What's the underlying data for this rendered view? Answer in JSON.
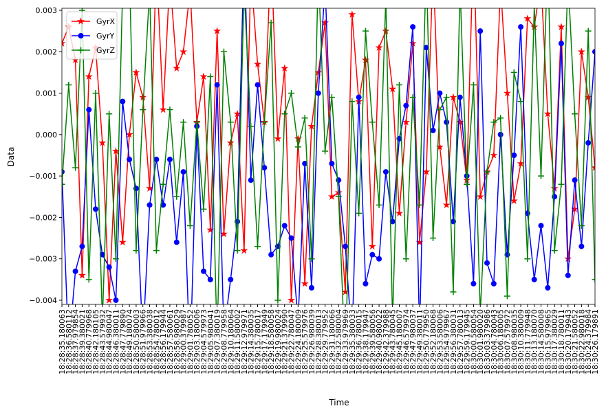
{
  "chart_data": {
    "type": "line",
    "xlabel": "Time",
    "ylabel": "Data",
    "categories": [
      "18:28:35.180063",
      "18:28:36.580112",
      "18:28:37.979854",
      "18:28:39.380021",
      "18:28:40.779968",
      "18:28:42.180105",
      "18:28:43.579932",
      "18:28:44.980047",
      "18:28:46.380011",
      "18:28:47.779890",
      "18:28:49.180074",
      "18:28:50.580003",
      "18:28:51.979966",
      "18:28:53.380038",
      "18:28:54.780012",
      "18:28:56.179944",
      "18:28:57.580061",
      "18:28:58.980029",
      "18:29:00.379987",
      "18:29:01.780052",
      "18:29:03.180006",
      "18:29:04.579973",
      "18:29:05.980041",
      "18:29:07.380019",
      "18:29:08.779958",
      "18:29:10.180064",
      "18:29:11.580002",
      "18:29:12.979971",
      "18:29:14.380035",
      "18:29:15.780017",
      "18:29:17.179949",
      "18:29:18.580058",
      "18:29:19.980024",
      "18:29:21.379990",
      "18:29:22.780047",
      "18:29:24.180009",
      "18:29:25.579976",
      "18:29:26.980039",
      "18:29:28.380013",
      "18:29:29.779952",
      "18:29:31.180066",
      "18:29:32.580004",
      "18:29:33.979969",
      "18:29:35.380033",
      "18:29:36.780015",
      "18:29:38.179947",
      "18:29:39.580056",
      "18:29:40.980022",
      "18:29:42.379988",
      "18:29:43.780045",
      "18:29:45.180007",
      "18:29:46.579974",
      "18:29:47.980037",
      "18:29:49.380011",
      "18:29:50.779950",
      "18:29:52.180068",
      "18:29:53.580006",
      "18:29:54.979967",
      "18:29:56.380031",
      "18:29:57.780013",
      "18:29:59.179945",
      "18:30:00.580054",
      "18:30:01.980020",
      "18:30:03.379986",
      "18:30:04.780043",
      "18:30:06.180005",
      "18:30:07.579972",
      "18:30:08.980035",
      "18:30:10.380009",
      "18:30:11.779948",
      "18:30:13.180070",
      "18:30:14.580008",
      "18:30:15.979965",
      "18:30:17.380029",
      "18:30:18.780011",
      "18:30:20.179943",
      "18:30:21.580052",
      "18:30:22.980018",
      "18:30:24.379984",
      "18:30:26.179891"
    ],
    "series": [
      {
        "name": "GyrX",
        "color": "#ff0000",
        "marker": "star",
        "values": [
          0.0022,
          0.0026,
          0.0018,
          -0.0034,
          0.0014,
          0.0021,
          -0.0002,
          -0.004,
          -0.0004,
          -0.0026,
          0.0,
          0.0015,
          0.0009,
          -0.0013,
          0.0042,
          0.0006,
          0.0038,
          0.0016,
          0.002,
          0.0035,
          0.0003,
          0.0014,
          -0.0023,
          0.0025,
          -0.0024,
          -0.0002,
          0.0005,
          -0.0028,
          0.0039,
          0.0017,
          0.0003,
          0.0044,
          -0.0001,
          0.0016,
          -0.004,
          -0.0001,
          -0.0036,
          0.0002,
          0.0015,
          0.0027,
          -0.0015,
          -0.0014,
          -0.0038,
          0.0029,
          0.0008,
          0.0018,
          -0.0027,
          0.0021,
          0.0025,
          0.0011,
          -0.0019,
          0.0003,
          0.0022,
          -0.0026,
          -0.0009,
          0.0041,
          -0.0003,
          -0.0017,
          0.0009,
          0.0003,
          -0.0011,
          0.0047,
          -0.0015,
          -0.0009,
          -0.0005,
          0.0036,
          0.001,
          -0.0016,
          -0.0007,
          0.0028,
          0.0026,
          0.0037,
          0.0005,
          -0.0013,
          0.0026,
          -0.003,
          -0.0018,
          0.002,
          0.0009,
          -0.0008
        ]
      },
      {
        "name": "GyrY",
        "color": "#0000ff",
        "marker": "circle",
        "values": [
          -0.0009,
          -0.0052,
          -0.0033,
          -0.0027,
          0.0006,
          -0.0018,
          -0.0029,
          -0.0032,
          -0.004,
          0.0008,
          -0.0006,
          -0.0013,
          -0.005,
          -0.0017,
          -0.0006,
          -0.0017,
          -0.0006,
          -0.0026,
          -0.0009,
          -0.0055,
          0.0002,
          -0.0033,
          -0.0035,
          0.0012,
          -0.0048,
          -0.0035,
          -0.0021,
          0.0045,
          -0.0011,
          0.0012,
          -0.0008,
          -0.0029,
          -0.0027,
          -0.0022,
          -0.0025,
          -0.0045,
          -0.0007,
          -0.0037,
          0.001,
          0.0036,
          -0.0007,
          -0.0011,
          -0.0027,
          -0.005,
          0.0009,
          -0.0036,
          -0.0029,
          -0.003,
          -0.0009,
          -0.0021,
          -0.0001,
          0.0007,
          0.0026,
          -0.0048,
          0.0021,
          0.0001,
          0.001,
          0.0003,
          -0.0021,
          0.0009,
          -0.001,
          -0.0036,
          0.0025,
          -0.0031,
          -0.0036,
          0.0,
          -0.0029,
          -0.0005,
          0.0026,
          -0.0019,
          -0.0035,
          -0.0022,
          -0.0037,
          -0.0015,
          0.0022,
          -0.0034,
          -0.0011,
          -0.0027,
          -0.0002,
          0.002
        ]
      },
      {
        "name": "GyrZ",
        "color": "#008000",
        "marker": "plus",
        "values": [
          -0.0012,
          0.0012,
          -0.0008,
          0.003,
          -0.0035,
          0.001,
          -0.0045,
          0.0005,
          -0.003,
          0.0035,
          0.004,
          -0.0028,
          0.0006,
          0.0035,
          -0.0028,
          -0.0012,
          0.0006,
          -0.0015,
          0.0003,
          -0.0022,
          0.0003,
          -0.0018,
          0.0014,
          -0.005,
          0.002,
          0.0003,
          -0.0028,
          0.0035,
          0.0002,
          -0.0027,
          0.0003,
          0.0027,
          -0.004,
          0.0005,
          0.001,
          -0.0003,
          0.0004,
          -0.003,
          0.004,
          -0.0004,
          0.0009,
          -0.0015,
          -0.0055,
          0.0008,
          -0.0019,
          0.0025,
          0.0003,
          -0.0017,
          0.0033,
          -0.0045,
          0.0012,
          -0.003,
          0.0009,
          -0.0017,
          0.0041,
          -0.0025,
          0.0006,
          0.0009,
          -0.0038,
          0.0036,
          -0.0012,
          0.0012,
          -0.0043,
          -0.0009,
          0.0003,
          0.0004,
          -0.0039,
          0.0015,
          0.0008,
          -0.003,
          0.0031,
          -0.001,
          0.0044,
          -0.0028,
          -0.0012,
          0.0038,
          0.0005,
          -0.0022,
          0.0025,
          -0.0035
        ]
      }
    ],
    "ylim": [
      -0.0041,
      0.00305
    ],
    "yticks": [
      {
        "value": -0.004,
        "label": "−0.004"
      },
      {
        "value": -0.003,
        "label": "−0.003"
      },
      {
        "value": -0.002,
        "label": "−0.002"
      },
      {
        "value": -0.001,
        "label": "−0.001"
      },
      {
        "value": 0,
        "label": "0.000"
      },
      {
        "value": 0.001,
        "label": "0.001"
      },
      {
        "value": 0.002,
        "label": "0.002"
      },
      {
        "value": 0.003,
        "label": "0.003"
      }
    ],
    "grid": false,
    "legend": "upper left"
  }
}
